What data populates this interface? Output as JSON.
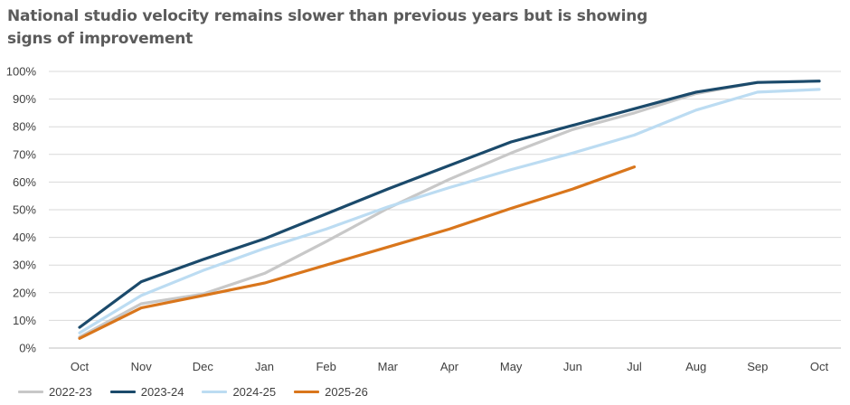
{
  "page": {
    "title": "National studio velocity remains slower than previous years but is showing signs of improvement"
  },
  "chart_data": {
    "type": "line",
    "categories": [
      "Oct",
      "Nov",
      "Dec",
      "Jan",
      "Feb",
      "Mar",
      "Apr",
      "May",
      "Jun",
      "Jul",
      "Aug",
      "Sep",
      "Oct"
    ],
    "yticks": [
      "0%",
      "10%",
      "20%",
      "30%",
      "40%",
      "50%",
      "60%",
      "70%",
      "80%",
      "90%",
      "100%"
    ],
    "ylim": [
      0,
      100
    ],
    "grid": true,
    "legend_position": "bottom",
    "series": [
      {
        "name": "2022-23",
        "color": "#c8c8c8",
        "values": [
          4,
          16,
          19.5,
          27,
          38.5,
          50.5,
          61,
          70.5,
          79,
          85,
          92,
          96,
          96.5
        ]
      },
      {
        "name": "2023-24",
        "color": "#1b4a6b",
        "values": [
          7.5,
          24,
          32,
          39.5,
          48.5,
          57.5,
          66,
          74.5,
          80.5,
          86.5,
          92.5,
          96,
          96.5
        ]
      },
      {
        "name": "2024-25",
        "color": "#bcdcf2",
        "values": [
          5.5,
          19,
          28,
          36,
          43,
          51,
          58,
          64.5,
          70.5,
          77,
          86,
          92.5,
          93.5
        ]
      },
      {
        "name": "2025-26",
        "color": "#d9761c",
        "values": [
          3.5,
          14.5,
          19,
          23.5,
          30,
          36.5,
          43,
          50.5,
          57.5,
          65.5,
          null,
          null,
          null
        ]
      }
    ]
  }
}
